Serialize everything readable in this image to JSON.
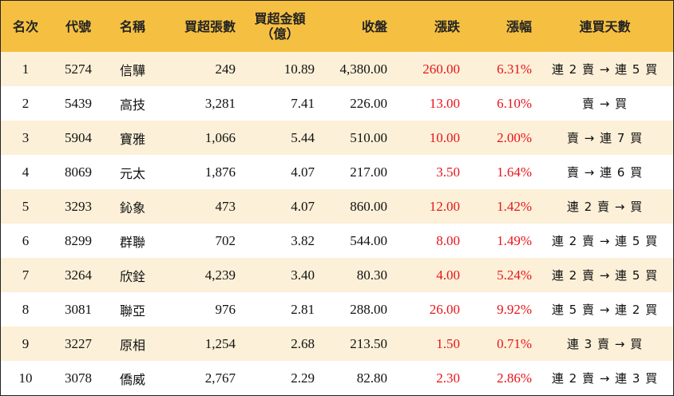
{
  "headers": {
    "rank": "名次",
    "code": "代號",
    "name": "名稱",
    "lots": "買超張數",
    "amount_line1": "買超金額",
    "amount_line2": "（億）",
    "close": "收盤",
    "change": "漲跌",
    "pct": "漲幅",
    "streak": "連買天數"
  },
  "colors": {
    "header_bg": "#f5c042",
    "row_alt_bg": "#fcf0d8",
    "up_red": "#e8141b"
  },
  "rows": [
    {
      "rank": "1",
      "code": "5274",
      "name": "信驊",
      "lots": "249",
      "amount": "10.89",
      "close": "4,380.00",
      "change": "260.00",
      "pct": "6.31%",
      "streak": "連 2 賣 → 連 5 買"
    },
    {
      "rank": "2",
      "code": "5439",
      "name": "高技",
      "lots": "3,281",
      "amount": "7.41",
      "close": "226.00",
      "change": "13.00",
      "pct": "6.10%",
      "streak": "賣 → 買"
    },
    {
      "rank": "3",
      "code": "5904",
      "name": "寶雅",
      "lots": "1,066",
      "amount": "5.44",
      "close": "510.00",
      "change": "10.00",
      "pct": "2.00%",
      "streak": "賣 → 連 7 買"
    },
    {
      "rank": "4",
      "code": "8069",
      "name": "元太",
      "lots": "1,876",
      "amount": "4.07",
      "close": "217.00",
      "change": "3.50",
      "pct": "1.64%",
      "streak": "賣 → 連 6 買"
    },
    {
      "rank": "5",
      "code": "3293",
      "name": "鈊象",
      "lots": "473",
      "amount": "4.07",
      "close": "860.00",
      "change": "12.00",
      "pct": "1.42%",
      "streak": "連 2 賣 → 買"
    },
    {
      "rank": "6",
      "code": "8299",
      "name": "群聯",
      "lots": "702",
      "amount": "3.82",
      "close": "544.00",
      "change": "8.00",
      "pct": "1.49%",
      "streak": "連 2 賣 → 連 5 買"
    },
    {
      "rank": "7",
      "code": "3264",
      "name": "欣銓",
      "lots": "4,239",
      "amount": "3.40",
      "close": "80.30",
      "change": "4.00",
      "pct": "5.24%",
      "streak": "連 2 賣 → 連 5 買"
    },
    {
      "rank": "8",
      "code": "3081",
      "name": "聯亞",
      "lots": "976",
      "amount": "2.81",
      "close": "288.00",
      "change": "26.00",
      "pct": "9.92%",
      "streak": "連 5 賣 → 連 2 買"
    },
    {
      "rank": "9",
      "code": "3227",
      "name": "原相",
      "lots": "1,254",
      "amount": "2.68",
      "close": "213.50",
      "change": "1.50",
      "pct": "0.71%",
      "streak": "連 3 賣 → 買"
    },
    {
      "rank": "10",
      "code": "3078",
      "name": "僑威",
      "lots": "2,767",
      "amount": "2.29",
      "close": "82.80",
      "change": "2.30",
      "pct": "2.86%",
      "streak": "連 2 賣 → 連 3 買"
    }
  ]
}
